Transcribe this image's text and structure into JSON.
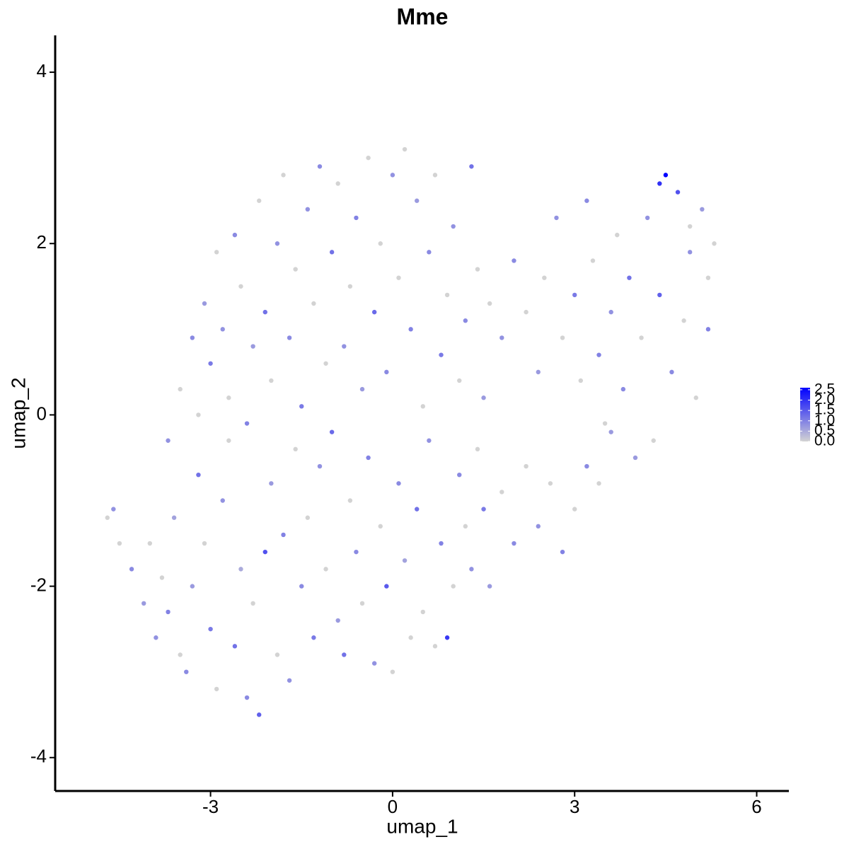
{
  "chart_data": {
    "type": "scatter",
    "title": "Mme",
    "x_label": "umap_1",
    "y_label": "umap_2",
    "xlim": [
      -5.56,
      6.53
    ],
    "ylim": [
      -4.39,
      4.43
    ],
    "xticks": [
      -3,
      0,
      3,
      6
    ],
    "yticks": [
      -4,
      -2,
      0,
      2,
      4
    ],
    "color_low": "#d3d3d3",
    "color_high": "#0000ff",
    "colorlim": [
      0,
      2.6
    ],
    "colorbar_ticks": [
      {
        "value": 0,
        "label": "0.0"
      },
      {
        "value": 0.5,
        "label": "0.5"
      },
      {
        "value": 1,
        "label": "1.0"
      },
      {
        "value": 1.5,
        "label": "1.5"
      },
      {
        "value": 2,
        "label": "2.0"
      },
      {
        "value": 2.5,
        "label": "2.5"
      }
    ],
    "x": [
      -4.7,
      -4.6,
      -4.5,
      -4.3,
      -4.1,
      -4.0,
      -3.9,
      -3.8,
      -3.7,
      -3.6,
      -3.5,
      -3.4,
      -3.3,
      -3.2,
      -3.1,
      -3.0,
      -2.9,
      -2.8,
      -2.7,
      -2.6,
      -2.5,
      -2.4,
      -2.3,
      -2.2,
      -2.1,
      -2.0,
      -1.9,
      -1.8,
      -1.7,
      -1.6,
      -1.5,
      -1.4,
      -1.3,
      -1.2,
      -1.1,
      -1.0,
      -0.9,
      -0.8,
      -0.7,
      -0.6,
      -0.5,
      -0.4,
      -0.3,
      -0.2,
      -0.1,
      0.0,
      0.1,
      0.2,
      0.3,
      0.4,
      0.5,
      0.6,
      0.7,
      0.8,
      0.9,
      1.0,
      1.1,
      1.2,
      1.3,
      1.4,
      1.5,
      1.6,
      1.8,
      2.0,
      2.2,
      2.4,
      2.6,
      2.8,
      3.0,
      3.2,
      3.4,
      3.6,
      -3.7,
      -3.5,
      -3.3,
      -3.2,
      -3.1,
      -3.0,
      -2.9,
      -2.8,
      -2.7,
      -2.6,
      -2.5,
      -2.4,
      -2.3,
      -2.2,
      -2.1,
      -2.0,
      -1.9,
      -1.8,
      -1.7,
      -1.6,
      -1.5,
      -1.4,
      -1.3,
      -1.2,
      -1.1,
      -1.0,
      -0.9,
      -0.8,
      -0.7,
      -0.6,
      -0.5,
      -0.4,
      -0.3,
      -0.2,
      -0.1,
      0.0,
      0.1,
      0.2,
      0.3,
      0.4,
      0.5,
      0.6,
      0.7,
      0.8,
      0.9,
      1.0,
      1.1,
      1.2,
      1.3,
      1.4,
      1.5,
      1.6,
      1.8,
      2.0,
      2.2,
      2.4,
      2.5,
      2.7,
      2.8,
      3.0,
      3.1,
      3.2,
      3.3,
      3.4,
      3.5,
      3.6,
      3.7,
      3.8,
      3.9,
      4.0,
      4.1,
      4.2,
      4.3,
      4.4,
      4.5,
      4.6,
      4.7,
      4.8,
      4.9,
      5.0,
      5.1,
      5.2,
      5.3,
      4.4,
      4.9,
      5.2
    ],
    "y": [
      -1.2,
      -1.1,
      -1.5,
      -1.8,
      -2.2,
      -1.5,
      -2.6,
      -1.9,
      -2.3,
      -1.2,
      -2.8,
      -3.0,
      -2.0,
      -0.7,
      -1.5,
      -2.5,
      -3.2,
      -1.0,
      -0.3,
      -2.7,
      -1.8,
      -3.3,
      -2.2,
      -3.5,
      -1.6,
      -0.8,
      -2.8,
      -1.4,
      -3.1,
      -0.4,
      -2.0,
      -1.2,
      -2.6,
      -0.6,
      -1.8,
      -0.2,
      -2.4,
      -2.8,
      -1.0,
      -1.6,
      -2.2,
      -0.5,
      -2.9,
      -1.3,
      -2.0,
      -3.0,
      -0.8,
      -1.7,
      -2.6,
      -1.1,
      -2.3,
      -0.3,
      -2.7,
      -1.5,
      -2.6,
      -2.0,
      -0.7,
      -1.3,
      -1.8,
      -0.4,
      -1.1,
      -2.0,
      -0.9,
      -1.5,
      -0.6,
      -1.3,
      -0.8,
      -1.6,
      -1.1,
      -0.6,
      -0.8,
      -0.2,
      -0.3,
      0.3,
      0.9,
      0.0,
      1.3,
      0.6,
      1.9,
      1.0,
      0.2,
      2.1,
      1.5,
      -0.1,
      0.8,
      2.5,
      1.2,
      0.4,
      2.0,
      2.8,
      0.9,
      1.7,
      0.1,
      2.4,
      1.3,
      2.9,
      0.6,
      1.9,
      2.7,
      0.8,
      1.5,
      2.3,
      0.3,
      3.0,
      1.2,
      2.0,
      0.5,
      2.8,
      1.6,
      3.1,
      1.0,
      2.5,
      0.1,
      1.9,
      2.8,
      0.7,
      1.4,
      2.2,
      0.4,
      1.1,
      2.9,
      1.7,
      0.2,
      1.3,
      0.9,
      1.8,
      1.2,
      0.5,
      1.6,
      2.3,
      0.9,
      1.4,
      0.4,
      2.5,
      1.8,
      0.7,
      -0.1,
      1.2,
      2.1,
      0.3,
      1.6,
      -0.5,
      0.9,
      2.3,
      -0.3,
      1.4,
      2.8,
      0.5,
      2.6,
      1.1,
      1.9,
      0.2,
      2.4,
      1.0,
      2.0,
      2.7,
      2.2,
      1.6
    ],
    "values": [
      0,
      0.8,
      0,
      0.9,
      0.7,
      0,
      0.8,
      0,
      1.0,
      0.6,
      0,
      0.9,
      0.7,
      1.2,
      0,
      1.1,
      0,
      0.8,
      0,
      1.2,
      0.5,
      0.9,
      0,
      1.4,
      1.6,
      0.7,
      0,
      1.0,
      0.8,
      0,
      0.9,
      0,
      1.1,
      0.8,
      0,
      1.3,
      0.7,
      1.2,
      0,
      0.9,
      0,
      1.0,
      0.8,
      0,
      1.5,
      0,
      0.9,
      0.6,
      0,
      1.2,
      0,
      0.8,
      0,
      1.0,
      1.9,
      0,
      0.9,
      0,
      0.8,
      0,
      1.1,
      0.7,
      0,
      0.9,
      0,
      0.8,
      0,
      1.0,
      0,
      0.9,
      0,
      0.7,
      0.8,
      0,
      0.9,
      0,
      0.7,
      1.1,
      0,
      0.8,
      0,
      0.9,
      0,
      1.0,
      0.7,
      0,
      1.2,
      0,
      0.8,
      0,
      0.9,
      0,
      1.1,
      0.8,
      0,
      0.9,
      0,
      1.2,
      0,
      0.8,
      0,
      1.0,
      0.7,
      0,
      1.3,
      0,
      0.9,
      0.8,
      0,
      0,
      1.0,
      0.7,
      0,
      0.9,
      0,
      1.1,
      0,
      0.8,
      0,
      0.9,
      1.2,
      0,
      0.7,
      0,
      0.8,
      0.9,
      0,
      0.7,
      0,
      0.8,
      0,
      1.1,
      0,
      0.9,
      0,
      1.0,
      0,
      0.8,
      0,
      0.9,
      1.2,
      0.7,
      0,
      0.8,
      0,
      1.4,
      2.6,
      0.9,
      1.6,
      0,
      0.8,
      0,
      0.7,
      1.0,
      0,
      2.0,
      0,
      0
    ]
  }
}
